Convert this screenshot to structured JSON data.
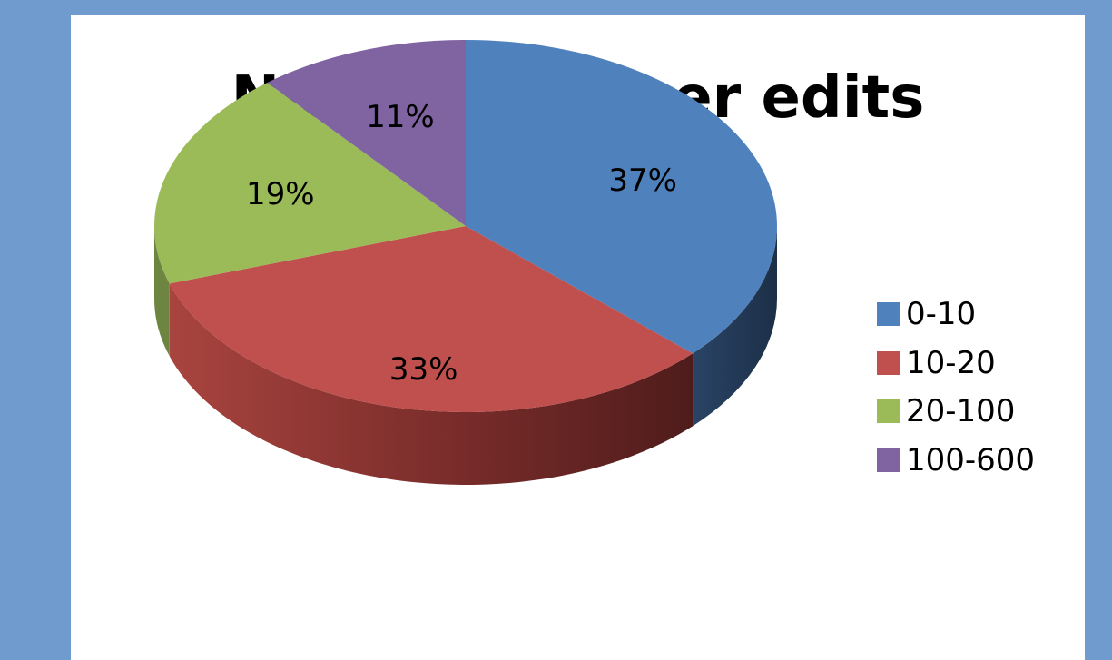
{
  "chart_data": {
    "type": "pie",
    "title": "Number of user edits",
    "categories": [
      "0-10",
      "10-20",
      "20-100",
      "100-600"
    ],
    "values": [
      37,
      33,
      19,
      11
    ],
    "labels": [
      "37%",
      "33%",
      "19%",
      "11%"
    ],
    "colors": [
      "#4f81bd",
      "#c0504d",
      "#9bbb59",
      "#8064a2"
    ],
    "legend_position": "right",
    "style": "3d"
  }
}
